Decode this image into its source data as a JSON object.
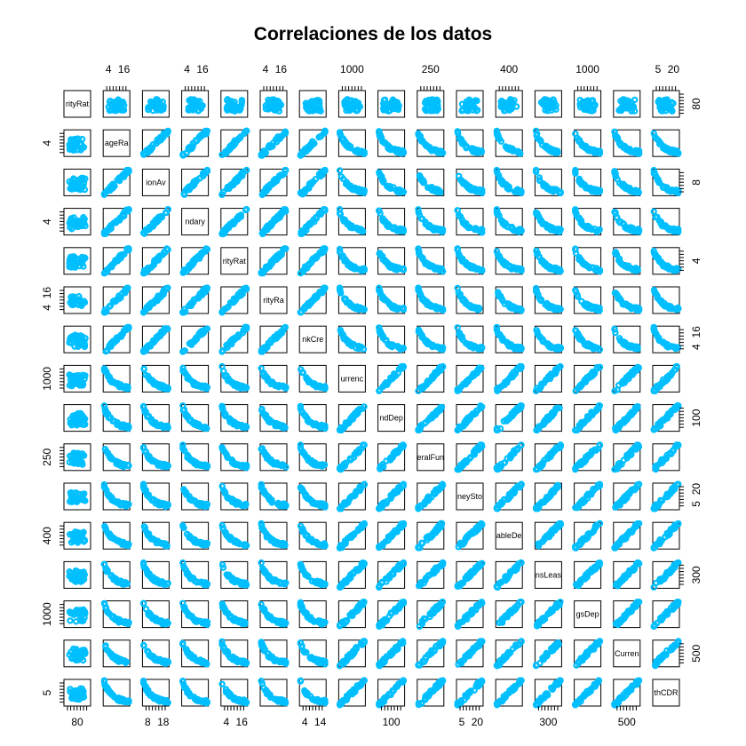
{
  "chart_data": {
    "type": "scatter",
    "title": "Correlaciones de los datos",
    "variables": [
      "rityRat",
      "ageRa",
      "ionAv",
      "ndary",
      "rityRat",
      "rityRa",
      "nkCre",
      "urrenc",
      "ndDep",
      "eralFun",
      "neySto",
      "ableDe",
      "nsLeas",
      "gsDep",
      "Curren",
      "thCDR"
    ],
    "point_color": "#00BFFF",
    "axis_labels": {
      "top": [
        {
          "panel": 1,
          "labels": [
            "4",
            "16"
          ]
        },
        {
          "panel": 3,
          "labels": [
            "4",
            "16"
          ]
        },
        {
          "panel": 5,
          "labels": [
            "4",
            "16"
          ]
        },
        {
          "panel": 7,
          "labels": [
            "1000"
          ]
        },
        {
          "panel": 9,
          "labels": [
            "250"
          ]
        },
        {
          "panel": 11,
          "labels": [
            "400"
          ]
        },
        {
          "panel": 13,
          "labels": [
            "1000"
          ]
        },
        {
          "panel": 15,
          "labels": [
            "5",
            "20"
          ]
        }
      ],
      "bottom": [
        {
          "panel": 0,
          "labels": [
            "80"
          ]
        },
        {
          "panel": 2,
          "labels": [
            "8",
            "18"
          ]
        },
        {
          "panel": 4,
          "labels": [
            "4",
            "16"
          ]
        },
        {
          "panel": 6,
          "labels": [
            "4",
            "14"
          ]
        },
        {
          "panel": 8,
          "labels": [
            "100"
          ]
        },
        {
          "panel": 10,
          "labels": [
            "5",
            "20"
          ]
        },
        {
          "panel": 12,
          "labels": [
            "300"
          ]
        },
        {
          "panel": 14,
          "labels": [
            "500"
          ]
        }
      ],
      "left": [
        {
          "panel": 1,
          "labels": [
            "4"
          ]
        },
        {
          "panel": 3,
          "labels": [
            "4"
          ]
        },
        {
          "panel": 5,
          "labels": [
            "4",
            "16"
          ]
        },
        {
          "panel": 7,
          "labels": [
            "1000"
          ]
        },
        {
          "panel": 9,
          "labels": [
            "250"
          ]
        },
        {
          "panel": 11,
          "labels": [
            "400"
          ]
        },
        {
          "panel": 13,
          "labels": [
            "1000"
          ]
        },
        {
          "panel": 15,
          "labels": [
            "5"
          ]
        }
      ],
      "right": [
        {
          "panel": 0,
          "labels": [
            "80"
          ]
        },
        {
          "panel": 2,
          "labels": [
            "8"
          ]
        },
        {
          "panel": 4,
          "labels": [
            "4"
          ]
        },
        {
          "panel": 6,
          "labels": [
            "4",
            "16"
          ]
        },
        {
          "panel": 8,
          "labels": [
            "100"
          ]
        },
        {
          "panel": 10,
          "labels": [
            "5",
            "20"
          ]
        },
        {
          "panel": 12,
          "labels": [
            "300"
          ]
        },
        {
          "panel": 14,
          "labels": [
            "500"
          ]
        }
      ]
    }
  }
}
